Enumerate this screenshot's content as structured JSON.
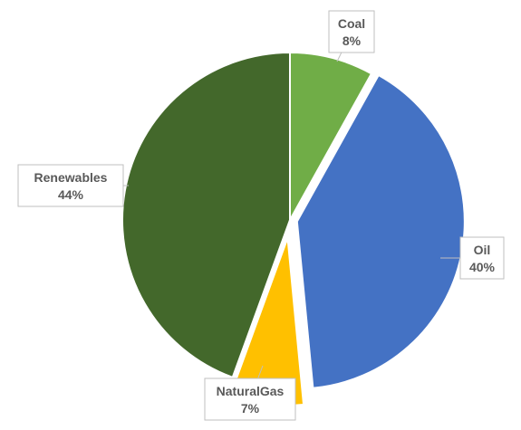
{
  "chart_data": {
    "type": "pie",
    "title": "",
    "slices": [
      {
        "label": "Coal",
        "value": 8,
        "display": "8%",
        "color": "#70ad47"
      },
      {
        "label": "Oil",
        "value": 40,
        "display": "40%",
        "color": "#4472c4"
      },
      {
        "label": "NaturalGas",
        "value": 7,
        "display": "7%",
        "color": "#ffc000"
      },
      {
        "label": "Renewables",
        "value": 44,
        "display": "44%",
        "color": "#43682b"
      }
    ],
    "exploded": [
      "Oil",
      "NaturalGas"
    ],
    "start_angle_degrees": 0,
    "direction": "clockwise",
    "data_labels": "callouts"
  }
}
